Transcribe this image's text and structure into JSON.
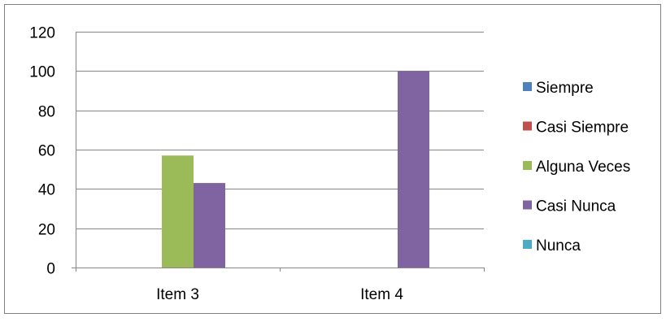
{
  "chart_data": {
    "type": "bar",
    "categories": [
      "Item 3",
      "Item 4"
    ],
    "series": [
      {
        "name": "Siempre",
        "color": "#4F81BD",
        "values": [
          0,
          0
        ]
      },
      {
        "name": "Casi Siempre",
        "color": "#C0504D",
        "values": [
          0,
          0
        ]
      },
      {
        "name": "Alguna Veces",
        "color": "#9BBB59",
        "values": [
          57,
          0
        ]
      },
      {
        "name": "Casi Nunca",
        "color": "#8064A2",
        "values": [
          43,
          100
        ]
      },
      {
        "name": "Nunca",
        "color": "#4BACC6",
        "values": [
          0,
          0
        ]
      }
    ],
    "yticks": [
      "0",
      "20",
      "40",
      "60",
      "80",
      "100",
      "120"
    ],
    "ylim": [
      0,
      120
    ],
    "grid": true,
    "legend_position": "right"
  }
}
